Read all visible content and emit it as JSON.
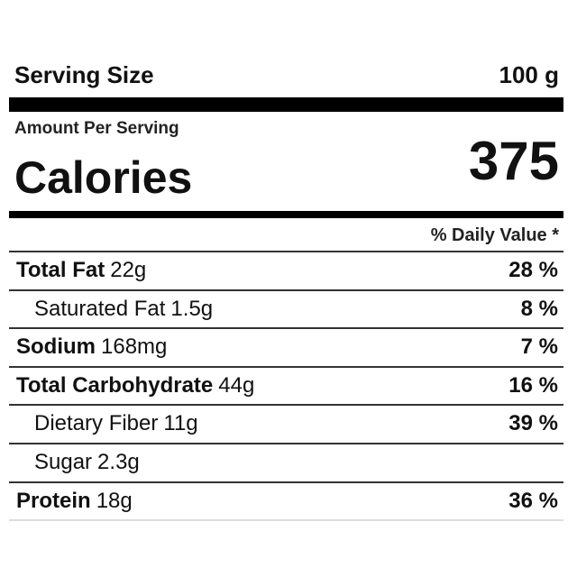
{
  "header": {
    "serving_size_label": "Serving Size",
    "serving_size": "100 g",
    "amount_per_serving": "Amount Per Serving",
    "calories_label": "Calories",
    "calories": 375,
    "daily_value_header": "% Daily Value *"
  },
  "rows": [
    {
      "name": "Total Fat",
      "amount": "22g",
      "daily_value": "28 %",
      "indent": false
    },
    {
      "name": "Saturated Fat",
      "amount": "1.5g",
      "daily_value": "8 %",
      "indent": true
    },
    {
      "name": "Sodium",
      "amount": "168mg",
      "daily_value": "7 %",
      "indent": false
    },
    {
      "name": "Total Carbohydrate",
      "amount": "44g",
      "daily_value": "16 %",
      "indent": false
    },
    {
      "name": "Dietary Fiber",
      "amount": "11g",
      "daily_value": "39 %",
      "indent": true
    },
    {
      "name": "Sugar",
      "amount": "2.3g",
      "indent": true
    },
    {
      "name": "Protein",
      "amount": "18g",
      "daily_value": "36 %",
      "indent": false
    }
  ]
}
